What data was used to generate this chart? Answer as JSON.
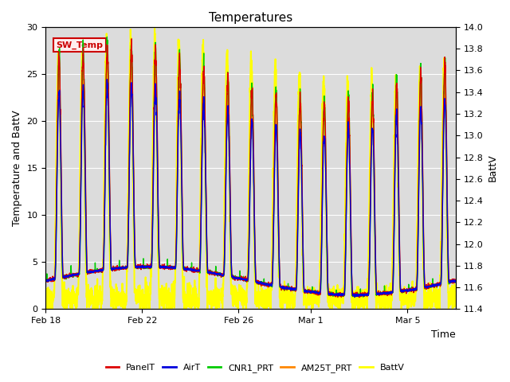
{
  "title": "Temperatures",
  "xlabel": "Time",
  "ylabel_left": "Temperature and BattV",
  "ylabel_right": "BattV",
  "ylim_left": [
    0,
    30
  ],
  "ylim_right": [
    11.4,
    14.0
  ],
  "yticks_left": [
    0,
    5,
    10,
    15,
    20,
    25,
    30
  ],
  "yticks_right": [
    11.4,
    11.6,
    11.8,
    12.0,
    12.2,
    12.4,
    12.6,
    12.8,
    13.0,
    13.2,
    13.4,
    13.6,
    13.8,
    14.0
  ],
  "xtick_labels": [
    "Feb 18",
    "Feb 22",
    "Feb 26",
    "Mar 1",
    "Mar 5"
  ],
  "xtick_positions": [
    0,
    4,
    8,
    11,
    15
  ],
  "annotation_text": "SW_Temp",
  "annotation_box_color": "#cc0000",
  "annotation_fill": "#ffeeee",
  "bg_color": "#dcdcdc",
  "series": {
    "PanelT": {
      "color": "#dd0000",
      "lw": 1.0
    },
    "AirT": {
      "color": "#0000dd",
      "lw": 1.0
    },
    "CNR1_PRT": {
      "color": "#00cc00",
      "lw": 1.0
    },
    "AM25T_PRT": {
      "color": "#ff8800",
      "lw": 1.0
    },
    "BattV": {
      "color": "#ffff00",
      "lw": 1.5
    }
  },
  "num_days": 17,
  "points_per_day": 144,
  "temp_night_min": 1.5,
  "temp_night_max": 5.0,
  "temp_day_peak_min": 22.0,
  "temp_day_peak_max": 29.0,
  "batt_night_min": 11.45,
  "batt_night_max": 11.65,
  "batt_day_peak_min": 13.6,
  "batt_day_peak_max": 13.9
}
